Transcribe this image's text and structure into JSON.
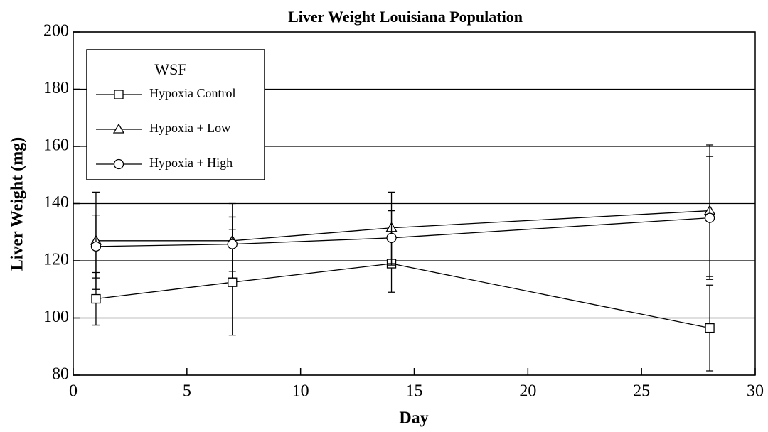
{
  "chart_data": {
    "type": "line",
    "title": "Liver Weight Louisiana Population",
    "x_label": "Day",
    "y_label": "Liver Weight (mg)",
    "x": [
      1,
      7,
      14,
      28
    ],
    "legend_title": "WSF",
    "legend": "upper left",
    "grid": true,
    "series": [
      {
        "name": "Hypoxia Control",
        "color": "#000000",
        "marker": "square",
        "values": [
          106.7,
          112.5,
          119,
          96.5
        ],
        "errors": [
          9.2,
          18.5,
          10,
          15
        ]
      },
      {
        "name": "Hypoxia + Low",
        "color": "#000000",
        "marker": "triangle",
        "values": [
          127,
          127,
          131.5,
          137.5
        ],
        "errors": [
          17,
          13,
          12.5,
          23
        ]
      },
      {
        "name": "Hypoxia + High",
        "color": "#000000",
        "marker": "circle",
        "values": [
          125,
          125.8,
          128,
          135
        ],
        "errors": [
          11,
          9.5,
          9.5,
          21.5
        ]
      }
    ],
    "xlim": [
      0,
      30
    ],
    "xticks": [
      0,
      5,
      10,
      15,
      20,
      25,
      30
    ],
    "ylim": [
      80,
      200
    ],
    "yticks": [
      80,
      100,
      120,
      140,
      160,
      180,
      200
    ]
  }
}
